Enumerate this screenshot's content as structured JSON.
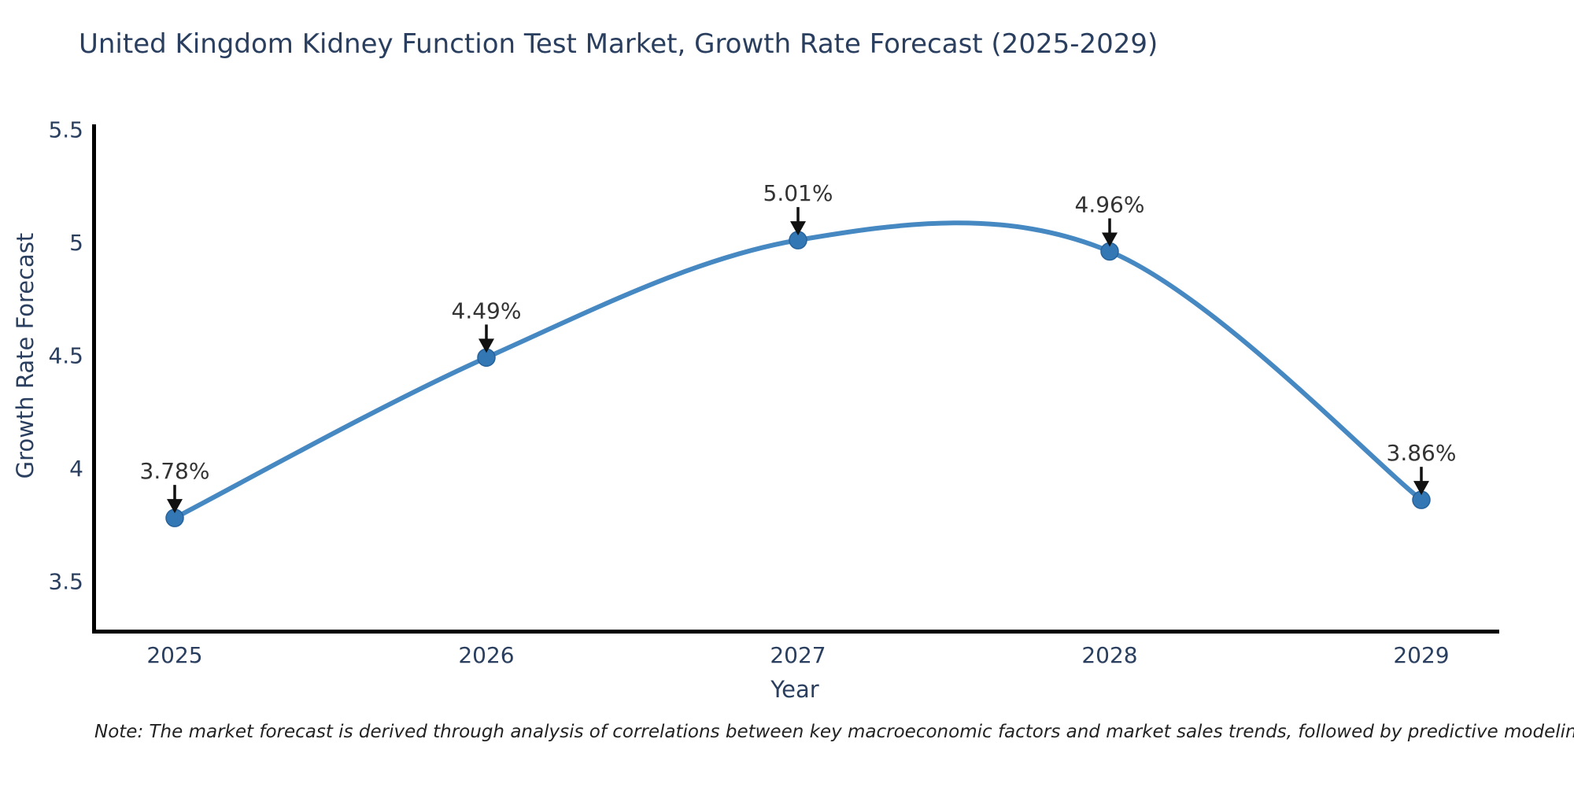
{
  "title": "United Kingdom Kidney Function Test Market, Growth Rate Forecast (2025-2029)",
  "footnote": "Note: The market forecast is derived through analysis of correlations between key macroeconomic factors and market sales trends, followed by predictive modeling to project future sales",
  "chart_data": {
    "type": "line",
    "line_shape": "spline",
    "title": "United Kingdom Kidney Function Test Market, Growth Rate Forecast (2025-2029)",
    "xlabel": "Year",
    "ylabel": "Growth Rate Forecast",
    "categories": [
      "2025",
      "2026",
      "2027",
      "2028",
      "2029"
    ],
    "values": [
      3.78,
      4.49,
      5.01,
      4.96,
      3.86
    ],
    "point_labels": [
      "3.78%",
      "4.49%",
      "5.01%",
      "4.96%",
      "3.86%"
    ],
    "yticks": [
      3.5,
      4,
      4.5,
      5,
      5.5
    ],
    "ytick_labels": [
      "3.5",
      "4",
      "4.5",
      "5",
      "5.5"
    ],
    "ylim": [
      3.29,
      5.52
    ],
    "grid": false,
    "legend": false,
    "markers": true,
    "annotations_arrows": true,
    "colors": {
      "line": "#4688c2",
      "marker_fill": "#3377b4",
      "marker_edge": "#27639c",
      "axis_line": "#000000",
      "tick_text": "#2a3f5f",
      "annotation_text": "#333333",
      "arrow": "#111111",
      "title_text": "#2a3f5f"
    }
  }
}
